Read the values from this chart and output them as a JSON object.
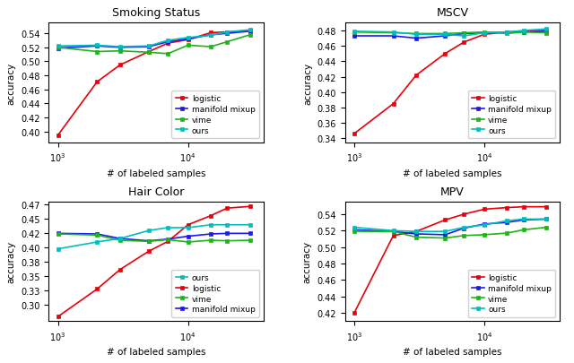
{
  "x_values": [
    1000,
    2000,
    3000,
    5000,
    7000,
    10000,
    15000,
    20000,
    30000
  ],
  "smoking_status": {
    "title": "Smoking Status",
    "logistic": [
      0.395,
      0.471,
      0.495,
      0.514,
      0.526,
      0.531,
      0.541,
      0.542,
      0.544
    ],
    "manifold_mixup": [
      0.519,
      0.522,
      0.52,
      0.521,
      0.528,
      0.532,
      0.538,
      0.54,
      0.543
    ],
    "vime": [
      0.52,
      0.514,
      0.515,
      0.513,
      0.511,
      0.523,
      0.521,
      0.528,
      0.538
    ],
    "ours": [
      0.522,
      0.523,
      0.521,
      0.522,
      0.53,
      0.534,
      0.537,
      0.542,
      0.545
    ],
    "ylim": [
      0.385,
      0.555
    ],
    "yticks": [
      0.4,
      0.42,
      0.44,
      0.46,
      0.48,
      0.5,
      0.52,
      0.54
    ],
    "legend_order": [
      "logistic",
      "manifold_mixup",
      "vime",
      "ours"
    ],
    "legend_labels": [
      "logistic",
      "manifold mixup",
      "vime",
      "ours"
    ],
    "legend_loc": "lower right"
  },
  "mscv": {
    "title": "MSCV",
    "logistic": [
      0.346,
      0.385,
      0.422,
      0.45,
      0.465,
      0.475,
      0.478,
      0.479,
      0.48
    ],
    "manifold_mixup": [
      0.473,
      0.473,
      0.47,
      0.473,
      0.476,
      0.477,
      0.478,
      0.478,
      0.479
    ],
    "vime": [
      0.478,
      0.477,
      0.476,
      0.476,
      0.477,
      0.478,
      0.476,
      0.478,
      0.477
    ],
    "ours": [
      0.479,
      0.478,
      0.475,
      0.475,
      0.473,
      0.477,
      0.478,
      0.48,
      0.482
    ],
    "ylim": [
      0.335,
      0.49
    ],
    "yticks": [
      0.34,
      0.36,
      0.38,
      0.4,
      0.42,
      0.44,
      0.46,
      0.48
    ],
    "legend_order": [
      "logistic",
      "manifold_mixup",
      "vime",
      "ours"
    ],
    "legend_labels": [
      "logistic",
      "manifold mixup",
      "vime",
      "ours"
    ],
    "legend_loc": "lower right"
  },
  "hair_color": {
    "title": "Hair Color",
    "logistic": [
      0.28,
      0.328,
      0.362,
      0.394,
      0.411,
      0.44,
      0.456,
      0.469,
      0.472
    ],
    "manifold_mixup": [
      0.425,
      0.424,
      0.416,
      0.412,
      0.415,
      0.42,
      0.424,
      0.425,
      0.425
    ],
    "vime": [
      0.424,
      0.422,
      0.413,
      0.411,
      0.414,
      0.41,
      0.413,
      0.412,
      0.413
    ],
    "ours": [
      0.398,
      0.41,
      0.416,
      0.43,
      0.435,
      0.435,
      0.44,
      0.44,
      0.44
    ],
    "ylim": [
      0.272,
      0.48
    ],
    "yticks": [
      0.3,
      0.325,
      0.35,
      0.375,
      0.4,
      0.425,
      0.45,
      0.475
    ],
    "legend_order": [
      "ours",
      "logistic",
      "vime",
      "manifold_mixup"
    ],
    "legend_labels": [
      "ours",
      "logistic",
      "vime",
      "manifold mixup"
    ],
    "legend_loc": "lower right"
  },
  "mpv": {
    "title": "MPV",
    "logistic": [
      0.42,
      0.514,
      0.519,
      0.533,
      0.54,
      0.546,
      0.548,
      0.549,
      0.549
    ],
    "manifold_mixup": [
      0.521,
      0.519,
      0.516,
      0.515,
      0.523,
      0.528,
      0.53,
      0.533,
      0.534
    ],
    "vime": [
      0.519,
      0.519,
      0.512,
      0.511,
      0.514,
      0.515,
      0.517,
      0.521,
      0.524
    ],
    "ours": [
      0.524,
      0.52,
      0.519,
      0.519,
      0.524,
      0.527,
      0.532,
      0.534,
      0.534
    ],
    "ylim": [
      0.41,
      0.555
    ],
    "yticks": [
      0.42,
      0.44,
      0.46,
      0.48,
      0.5,
      0.52,
      0.54
    ],
    "legend_order": [
      "logistic",
      "manifold_mixup",
      "vime",
      "ours"
    ],
    "legend_labels": [
      "logistic",
      "manifold mixup",
      "vime",
      "ours"
    ],
    "legend_loc": "lower right"
  },
  "colors": {
    "logistic": "#e8000b",
    "manifold_mixup": "#1c19f0",
    "vime": "#1db518",
    "ours": "#00bebe"
  }
}
